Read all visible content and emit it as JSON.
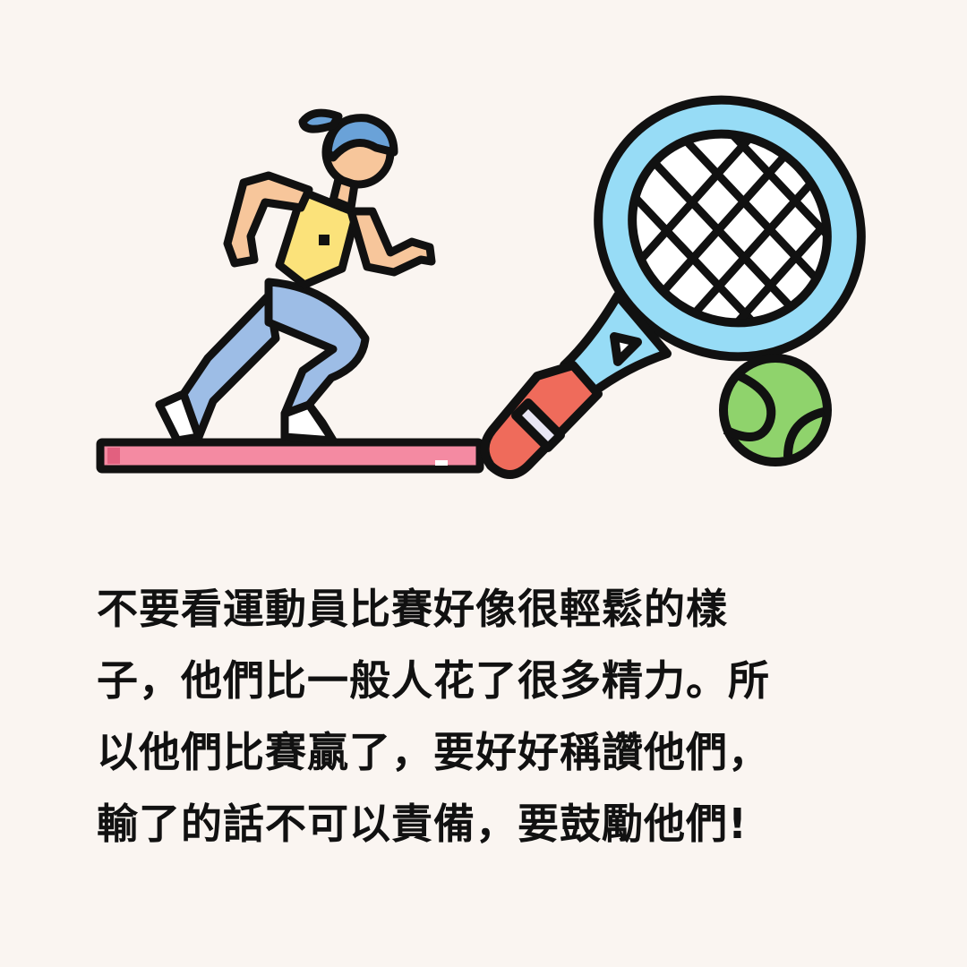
{
  "illustration": {
    "icons": [
      "runner-icon",
      "tennis-racket-icon",
      "tennis-ball-icon",
      "track-icon"
    ],
    "colors": {
      "outline": "#111111",
      "skin": "#f7c69b",
      "hair": "#6aa2d8",
      "top": "#fbe27a",
      "pants": "#9dbde6",
      "shoe": "#ffffff",
      "track": "#f48aa2",
      "racket_frame": "#97dcf6",
      "racket_handle": "#ef6b5b",
      "ball": "#8fd36c"
    }
  },
  "caption": {
    "lines": [
      "不要看運動員比賽好像很輕鬆的樣",
      "子，他們比一般人花了很多精力。所",
      "以他們比賽贏了，要好好稱讚他們，",
      "輸了的話不可以責備，要鼓勵他們!"
    ]
  }
}
